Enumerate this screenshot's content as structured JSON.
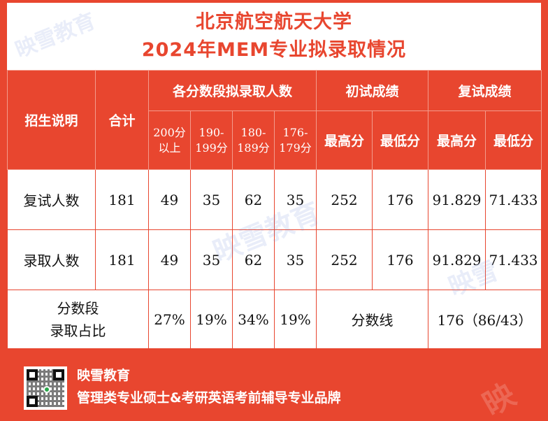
{
  "title": {
    "line1": "北京航空航天大学",
    "line2": "2024年MEM专业拟录取情况"
  },
  "table": {
    "headers": {
      "admission_note": "招生说明",
      "total": "合计",
      "segment_group": "各分数段拟录取人数",
      "initial_group": "初试成绩",
      "retest_group": "复试成绩",
      "seg_200_a": "200分",
      "seg_200_b": "以上",
      "seg_190_a": "190-",
      "seg_190_b": "199分",
      "seg_180_a": "180-",
      "seg_180_b": "189分",
      "seg_176_a": "176-",
      "seg_176_b": "179分",
      "init_max": "最高分",
      "init_min": "最低分",
      "re_max": "最高分",
      "re_min": "最低分"
    },
    "rows": [
      {
        "label": "复试人数",
        "total": "181",
        "seg200": "49",
        "seg190": "35",
        "seg180": "62",
        "seg176": "35",
        "init_max": "252",
        "init_min": "176",
        "re_max": "91.829",
        "re_min": "71.433"
      },
      {
        "label": "录取人数",
        "total": "181",
        "seg200": "49",
        "seg190": "35",
        "seg180": "62",
        "seg176": "35",
        "init_max": "252",
        "init_min": "176",
        "re_max": "91.829",
        "re_min": "71.433"
      }
    ],
    "ratio_row": {
      "label_a": "分数段",
      "label_b": "录取占比",
      "seg200": "27%",
      "seg190": "19%",
      "seg180": "34%",
      "seg176": "19%",
      "score_line_label": "分数线",
      "score_line_value": "176（86/43）"
    }
  },
  "footer": {
    "brand": "映雪教育",
    "slogan": "管理类专业硕士&考研英语考前辅导专业品牌",
    "qr_icon": "qr-code-icon"
  },
  "watermark": "映雪教育",
  "colors": {
    "brand_red": "#e8462f",
    "white": "#ffffff"
  }
}
